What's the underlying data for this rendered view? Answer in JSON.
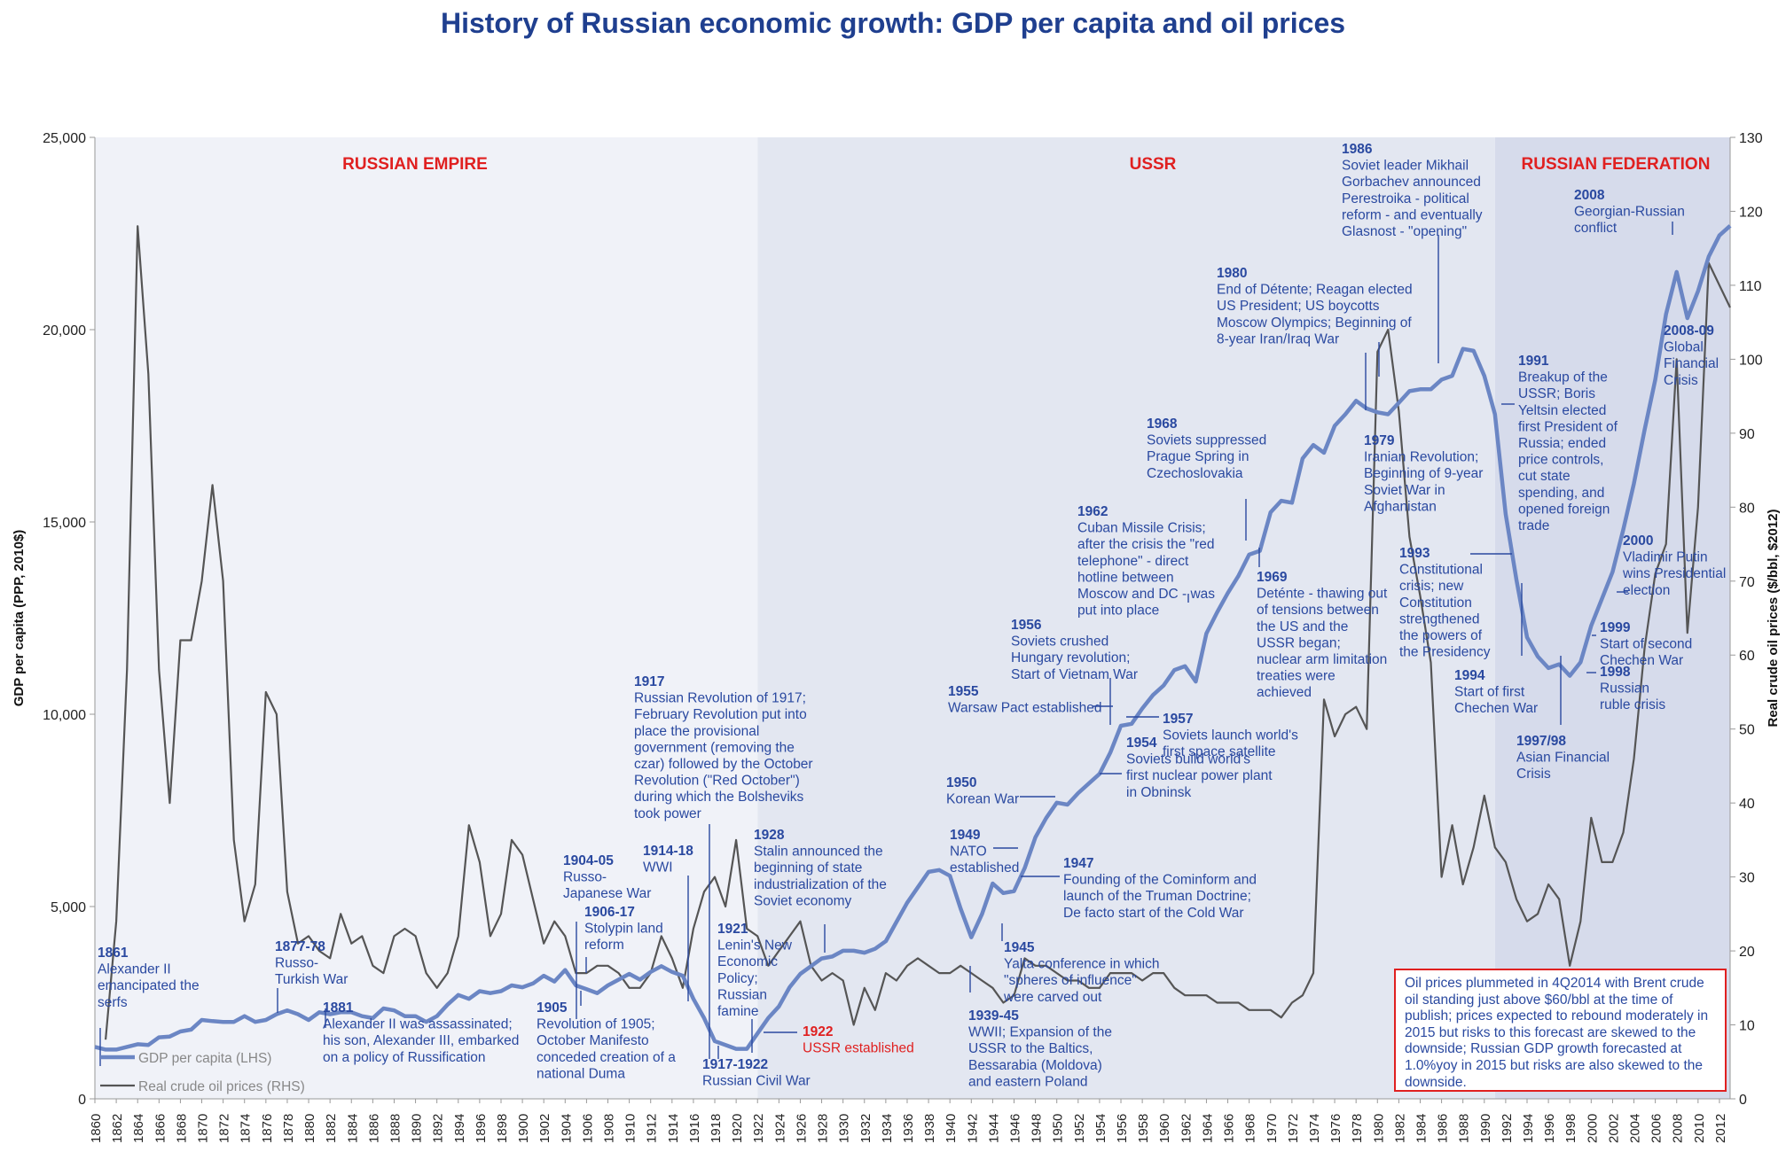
{
  "title": "History of Russian economic growth: GDP per capita and oil prices",
  "colors": {
    "gdp": "#6b86c4",
    "oil": "#555555",
    "title": "#1f3f8f",
    "annotation": "#2a49a0",
    "era_label": "#e02020",
    "empire_bg": "#f0f2f8",
    "ussr_bg": "#e3e7f1",
    "rf_bg": "#d6dbeb"
  },
  "chart_data": {
    "type": "line",
    "title": "History of Russian economic growth: GDP per capita and oil prices",
    "ylabel_left": "GDP per capita (PPP, 2010$)",
    "ylabel_right": "Real crude oil prices ($/bbl, $2012)",
    "ylim_left": [
      0,
      25000
    ],
    "ylim_right": [
      0,
      130
    ],
    "yticks_left": [
      "0",
      "5,000",
      "10,000",
      "15,000",
      "20,000",
      "25,000"
    ],
    "yticks_right": [
      "0",
      "10",
      "20",
      "30",
      "40",
      "50",
      "60",
      "70",
      "80",
      "90",
      "100",
      "110",
      "120",
      "130"
    ],
    "xlim": [
      1860,
      2013
    ],
    "xticks": [
      "1860",
      "1862",
      "1864",
      "1866",
      "1868",
      "1870",
      "1872",
      "1874",
      "1876",
      "1878",
      "1880",
      "1882",
      "1884",
      "1886",
      "1888",
      "1890",
      "1892",
      "1894",
      "1896",
      "1898",
      "1900",
      "1902",
      "1904",
      "1906",
      "1908",
      "1910",
      "1912",
      "1914",
      "1916",
      "1918",
      "1920",
      "1922",
      "1924",
      "1926",
      "1928",
      "1930",
      "1932",
      "1934",
      "1936",
      "1938",
      "1940",
      "1942",
      "1944",
      "1946",
      "1948",
      "1950",
      "1952",
      "1954",
      "1956",
      "1958",
      "1960",
      "1962",
      "1964",
      "1966",
      "1968",
      "1970",
      "1972",
      "1974",
      "1976",
      "1978",
      "1980",
      "1982",
      "1984",
      "1986",
      "1988",
      "1990",
      "1992",
      "1994",
      "1996",
      "1998",
      "2000",
      "2002",
      "2004",
      "2006",
      "2008",
      "2010",
      "2012"
    ],
    "legend": [
      {
        "name": "GDP per capita (LHS)",
        "key": "gdp"
      },
      {
        "name": "Real crude oil prices (RHS)",
        "key": "oil"
      }
    ],
    "eras": [
      {
        "label": "RUSSIAN EMPIRE",
        "from": 1860,
        "to": 1922
      },
      {
        "label": "USSR",
        "from": 1922,
        "to": 1991
      },
      {
        "label": "RUSSIAN FEDERATION",
        "from": 1991,
        "to": 2013
      }
    ],
    "series": [
      {
        "name": "GDP per capita (LHS)",
        "axis": "left",
        "x": [
          1860,
          1861,
          1862,
          1863,
          1864,
          1865,
          1866,
          1867,
          1868,
          1869,
          1870,
          1871,
          1872,
          1873,
          1874,
          1875,
          1876,
          1877,
          1878,
          1879,
          1880,
          1881,
          1882,
          1883,
          1884,
          1885,
          1886,
          1887,
          1888,
          1889,
          1890,
          1891,
          1892,
          1893,
          1894,
          1895,
          1896,
          1897,
          1898,
          1899,
          1900,
          1901,
          1902,
          1903,
          1904,
          1905,
          1906,
          1907,
          1908,
          1909,
          1910,
          1911,
          1912,
          1913,
          1914,
          1915,
          1916,
          1917,
          1918,
          1919,
          1920,
          1921,
          1922,
          1923,
          1924,
          1925,
          1926,
          1927,
          1928,
          1929,
          1930,
          1931,
          1932,
          1933,
          1934,
          1935,
          1936,
          1937,
          1938,
          1939,
          1940,
          1941,
          1942,
          1943,
          1944,
          1945,
          1946,
          1947,
          1948,
          1949,
          1950,
          1951,
          1952,
          1953,
          1954,
          1955,
          1956,
          1957,
          1958,
          1959,
          1960,
          1961,
          1962,
          1963,
          1964,
          1965,
          1966,
          1967,
          1968,
          1969,
          1970,
          1971,
          1972,
          1973,
          1974,
          1975,
          1976,
          1977,
          1978,
          1979,
          1980,
          1981,
          1982,
          1983,
          1984,
          1985,
          1986,
          1987,
          1988,
          1989,
          1990,
          1991,
          1992,
          1993,
          1994,
          1995,
          1996,
          1997,
          1998,
          1999,
          2000,
          2001,
          2002,
          2003,
          2004,
          2005,
          2006,
          2007,
          2008,
          2009,
          2010,
          2011,
          2012,
          2013
        ],
        "values": [
          1350,
          1280,
          1280,
          1350,
          1420,
          1400,
          1600,
          1620,
          1750,
          1800,
          2050,
          2020,
          2000,
          2000,
          2150,
          2000,
          2050,
          2200,
          2300,
          2200,
          2050,
          2250,
          2200,
          2250,
          2250,
          2150,
          2100,
          2350,
          2300,
          2150,
          2150,
          2000,
          2150,
          2450,
          2700,
          2600,
          2800,
          2750,
          2800,
          2950,
          2900,
          3000,
          3200,
          3050,
          3350,
          2950,
          2850,
          2750,
          2950,
          3100,
          3250,
          3100,
          3300,
          3450,
          3300,
          3200,
          2600,
          2100,
          1500,
          1400,
          1300,
          1300,
          1700,
          2100,
          2400,
          2900,
          3250,
          3450,
          3650,
          3700,
          3850,
          3850,
          3800,
          3900,
          4100,
          4600,
          5100,
          5500,
          5900,
          5950,
          5800,
          4950,
          4200,
          4800,
          5600,
          5350,
          5400,
          6000,
          6800,
          7300,
          7700,
          7650,
          7950,
          8200,
          8450,
          9000,
          9700,
          9750,
          10150,
          10500,
          10750,
          11150,
          11250,
          10850,
          12100,
          12650,
          13150,
          13600,
          14150,
          14250,
          15250,
          15550,
          15500,
          16650,
          17000,
          16800,
          17500,
          17800,
          18150,
          17950,
          17850,
          17800,
          18100,
          18400,
          18450,
          18450,
          18700,
          18800,
          19500,
          19450,
          18800,
          17800,
          15200,
          13500,
          12000,
          11500,
          11200,
          11300,
          11000,
          11350,
          12300,
          13000,
          13700,
          14800,
          16000,
          17400,
          18700,
          20400,
          21500,
          20300,
          21000,
          21900,
          22450,
          22700
        ]
      },
      {
        "name": "Real crude oil prices (RHS)",
        "axis": "right",
        "x": [
          1861,
          1862,
          1863,
          1864,
          1865,
          1866,
          1867,
          1868,
          1869,
          1870,
          1871,
          1872,
          1873,
          1874,
          1875,
          1876,
          1877,
          1878,
          1879,
          1880,
          1881,
          1882,
          1883,
          1884,
          1885,
          1886,
          1887,
          1888,
          1889,
          1890,
          1891,
          1892,
          1893,
          1894,
          1895,
          1896,
          1897,
          1898,
          1899,
          1900,
          1901,
          1902,
          1903,
          1904,
          1905,
          1906,
          1907,
          1908,
          1909,
          1910,
          1911,
          1912,
          1913,
          1914,
          1915,
          1916,
          1917,
          1918,
          1919,
          1920,
          1921,
          1922,
          1923,
          1924,
          1925,
          1926,
          1927,
          1928,
          1929,
          1930,
          1931,
          1932,
          1933,
          1934,
          1935,
          1936,
          1937,
          1938,
          1939,
          1940,
          1941,
          1942,
          1943,
          1944,
          1945,
          1946,
          1947,
          1948,
          1949,
          1950,
          1951,
          1952,
          1953,
          1954,
          1955,
          1956,
          1957,
          1958,
          1959,
          1960,
          1961,
          1962,
          1963,
          1964,
          1965,
          1966,
          1967,
          1968,
          1969,
          1970,
          1971,
          1972,
          1973,
          1974,
          1975,
          1976,
          1977,
          1978,
          1979,
          1980,
          1981,
          1982,
          1983,
          1984,
          1985,
          1986,
          1987,
          1988,
          1989,
          1990,
          1991,
          1992,
          1993,
          1994,
          1995,
          1996,
          1997,
          1998,
          1999,
          2000,
          2001,
          2002,
          2003,
          2004,
          2005,
          2006,
          2007,
          2008,
          2009,
          2010,
          2011,
          2012,
          2013
        ],
        "values": [
          8,
          24,
          58,
          118,
          98,
          58,
          40,
          62,
          62,
          70,
          83,
          70,
          35,
          24,
          29,
          55,
          52,
          28,
          21,
          22,
          20,
          19,
          25,
          21,
          22,
          18,
          17,
          22,
          23,
          22,
          17,
          15,
          17,
          22,
          37,
          32,
          22,
          25,
          35,
          33,
          27,
          21,
          24,
          22,
          17,
          17,
          18,
          18,
          17,
          15,
          15,
          17,
          22,
          19,
          15,
          23,
          28,
          30,
          26,
          35,
          23,
          22,
          18,
          20,
          22,
          24,
          18,
          16,
          17,
          16,
          10,
          15,
          12,
          17,
          16,
          18,
          19,
          18,
          17,
          17,
          18,
          17,
          16,
          15,
          13,
          14,
          19,
          18,
          18,
          17,
          16,
          16,
          15,
          15,
          17,
          17,
          17,
          16,
          17,
          17,
          15,
          14,
          14,
          14,
          13,
          13,
          13,
          12,
          12,
          12,
          11,
          13,
          14,
          17,
          54,
          49,
          52,
          53,
          50,
          101,
          104,
          93,
          76,
          68,
          59,
          30,
          37,
          29,
          34,
          41,
          34,
          32,
          27,
          24,
          25,
          29,
          27,
          18,
          24,
          38,
          32,
          32,
          36,
          46,
          61,
          71,
          75,
          100,
          63,
          80,
          113,
          110,
          107
        ]
      }
    ],
    "annotations": [
      {
        "year": "1861",
        "text": [
          "Alexander II",
          "emancipated the",
          "serfs"
        ]
      },
      {
        "year": "1877-78",
        "text": [
          "Russo-",
          "Turkish War"
        ]
      },
      {
        "year": "1881",
        "text": [
          "Alexander II was assassinated;",
          "his son, Alexander III, embarked",
          "on a policy of Russification"
        ]
      },
      {
        "year": "1904-05",
        "text": [
          "Russo-",
          "Japanese War"
        ]
      },
      {
        "year": "1905",
        "text": [
          "Revolution of 1905;",
          "October Manifesto",
          "conceded creation of a",
          "national Duma"
        ]
      },
      {
        "year": "1906-17",
        "text": [
          "Stolypin land",
          "reform"
        ]
      },
      {
        "year": "1914-18",
        "text": [
          "WWI"
        ]
      },
      {
        "year": "1917",
        "text": [
          "Russian Revolution of 1917;",
          "February Revolution put into",
          "place the provisional",
          "government (removing the",
          "czar) followed by the October",
          "Revolution (\"Red October\")",
          "during which the Bolsheviks",
          "took power"
        ]
      },
      {
        "year": "1917-1922",
        "text": [
          "Russian Civil War"
        ]
      },
      {
        "year": "1921",
        "text": [
          "Lenin's New",
          "Economic",
          "Policy;",
          "Russian",
          "famine"
        ]
      },
      {
        "year": "1922",
        "text": [
          "USSR established"
        ]
      },
      {
        "year": "1928",
        "text": [
          "Stalin announced the",
          "beginning of state",
          "industrialization of the",
          "Soviet economy"
        ]
      },
      {
        "year": "1939-45",
        "text": [
          "WWII; Expansion of the",
          "USSR to the Baltics,",
          "Bessarabia (Moldova)",
          "and eastern Poland"
        ]
      },
      {
        "year": "1945",
        "text": [
          "Yalta conference in which",
          "\"spheres of influence\"",
          "were carved out"
        ]
      },
      {
        "year": "1947",
        "text": [
          "Founding of the Cominform and",
          "launch of the Truman Doctrine;",
          "De facto start of the Cold War"
        ]
      },
      {
        "year": "1949",
        "text": [
          "NATO",
          "established"
        ]
      },
      {
        "year": "1950",
        "text": [
          "Korean War"
        ]
      },
      {
        "year": "1954",
        "text": [
          "Soviets build world's",
          "first nuclear power plant",
          "in Obninsk"
        ]
      },
      {
        "year": "1955",
        "text": [
          "Warsaw Pact established"
        ]
      },
      {
        "year": "1956",
        "text": [
          "Soviets crushed",
          "Hungary revolution;",
          "Start of Vietnam War"
        ]
      },
      {
        "year": "1957",
        "text": [
          "Soviets launch world's",
          "first space satellite"
        ]
      },
      {
        "year": "1962",
        "text": [
          "Cuban Missile Crisis;",
          "after the crisis the \"red",
          "telephone\" - direct",
          "hotline between",
          "Moscow and DC - was",
          "put into place"
        ]
      },
      {
        "year": "1968",
        "text": [
          "Soviets suppressed",
          "Prague Spring in",
          "Czechoslovakia"
        ]
      },
      {
        "year": "1969",
        "text": [
          "Deténte - thawing out",
          "of tensions between",
          "the US and the",
          "USSR began;",
          "nuclear arm limitation",
          "treaties were",
          "achieved"
        ]
      },
      {
        "year": "1979",
        "text": [
          "Iranian Revolution;",
          "Beginning of 9-year",
          "Soviet War in",
          "Afghanistan"
        ]
      },
      {
        "year": "1980",
        "text": [
          "End of Détente; Reagan elected",
          "US President; US boycotts",
          "Moscow Olympics; Beginning of",
          "8-year Iran/Iraq War"
        ]
      },
      {
        "year": "1986",
        "text": [
          "Soviet leader Mikhail",
          "Gorbachev announced",
          "Perestroika - political",
          "reform - and eventually",
          "Glasnost - \"opening\""
        ]
      },
      {
        "year": "1991",
        "text": [
          "Breakup of the",
          "USSR; Boris",
          "Yeltsin elected",
          "first President of",
          "Russia; ended",
          "price controls,",
          "cut state",
          "spending, and",
          "opened foreign",
          "trade"
        ]
      },
      {
        "year": "1993",
        "text": [
          "Constitutional",
          "crisis; new",
          "Constitution",
          "strengthened",
          "the powers of",
          "the Presidency"
        ]
      },
      {
        "year": "1994",
        "text": [
          "Start of first",
          "Chechen War"
        ]
      },
      {
        "year": "1997/98",
        "text": [
          "Asian Financial",
          "Crisis"
        ]
      },
      {
        "year": "1998",
        "text": [
          "Russian",
          "ruble crisis"
        ]
      },
      {
        "year": "1999",
        "text": [
          "Start of second",
          "Chechen War"
        ]
      },
      {
        "year": "2000",
        "text": [
          "Vladimir Putin",
          "wins Presidential",
          "election"
        ]
      },
      {
        "year": "2008",
        "text": [
          "Georgian-Russian",
          "conflict"
        ]
      },
      {
        "year": "2008-09",
        "text": [
          "Global",
          "Financial",
          "Crisis"
        ]
      }
    ]
  },
  "note": "Oil prices plummeted in 4Q2014 with Brent crude oil standing just above $60/bbl at the time of publish; prices expected to rebound moderately in 2015 but risks to this forecast are skewed to the downside; Russian GDP growth forecasted at 1.0%yoy in 2015 but risks are also skewed to the downside."
}
